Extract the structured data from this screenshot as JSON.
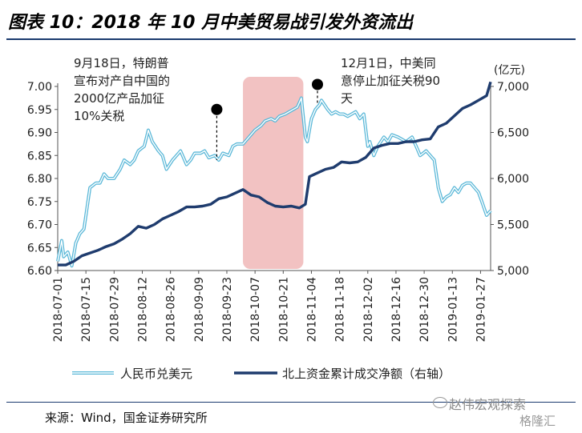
{
  "header": {
    "title": "图表 10：2018 年 10 月中美贸易战引发外资流出"
  },
  "footer": {
    "source": "来源：Wind，国金证券研究所",
    "watermark": "赵伟宏观探索",
    "watermark2": "格隆汇"
  },
  "colors": {
    "light_series": "#5bb8d8",
    "dark_series": "#1f3c6e",
    "shade": "#f2c2c2",
    "title_rule": "#1a3a6e"
  },
  "chart_data": {
    "type": "line",
    "x_tick_labels": [
      "2018-07-01",
      "2018-07-15",
      "2018-07-29",
      "2018-08-12",
      "2018-08-26",
      "2018-09-09",
      "2018-09-23",
      "2018-10-07",
      "2018-10-21",
      "2018-11-04",
      "2018-11-18",
      "2018-12-02",
      "2018-12-16",
      "2018-12-30",
      "2019-01-13",
      "2019-01-27"
    ],
    "xlim": [
      "2018-07-01",
      "2019-02-01"
    ],
    "y_left": {
      "ylim": [
        6.6,
        7.0
      ],
      "ticks": [
        "6.60",
        "6.65",
        "6.70",
        "6.75",
        "6.80",
        "6.85",
        "6.90",
        "6.95",
        "7.00"
      ]
    },
    "y_right": {
      "ylim": [
        5000,
        7000
      ],
      "ticks": [
        "5,000",
        "5,500",
        "6,000",
        "6,500",
        "7,000"
      ],
      "unit_label": "(亿元)"
    },
    "shaded_region": {
      "x_start": "2018-10-01",
      "x_end": "2018-10-31"
    },
    "annotations": [
      {
        "text": "9月18日，特朗普宣布对产自中国的2000亿产品加征10%关税",
        "x": "2018-09-18",
        "y": 6.95
      },
      {
        "text": "12月1日，中美同意停止加征关税90天",
        "x": "2018-11-07",
        "y": 6.98
      }
    ],
    "series": [
      {
        "name": "人民币兑美元",
        "axis": "left",
        "color": "#5bb8d8",
        "points": [
          [
            "2018-07-01",
            6.62
          ],
          [
            "2018-07-03",
            6.665
          ],
          [
            "2018-07-04",
            6.63
          ],
          [
            "2018-07-06",
            6.64
          ],
          [
            "2018-07-08",
            6.61
          ],
          [
            "2018-07-10",
            6.66
          ],
          [
            "2018-07-12",
            6.68
          ],
          [
            "2018-07-14",
            6.69
          ],
          [
            "2018-07-15",
            6.72
          ],
          [
            "2018-07-17",
            6.78
          ],
          [
            "2018-07-20",
            6.79
          ],
          [
            "2018-07-22",
            6.79
          ],
          [
            "2018-07-24",
            6.81
          ],
          [
            "2018-07-26",
            6.8
          ],
          [
            "2018-07-29",
            6.8
          ],
          [
            "2018-08-01",
            6.82
          ],
          [
            "2018-08-03",
            6.84
          ],
          [
            "2018-08-06",
            6.83
          ],
          [
            "2018-08-08",
            6.84
          ],
          [
            "2018-08-10",
            6.86
          ],
          [
            "2018-08-13",
            6.87
          ],
          [
            "2018-08-15",
            6.905
          ],
          [
            "2018-08-17",
            6.88
          ],
          [
            "2018-08-20",
            6.86
          ],
          [
            "2018-08-22",
            6.85
          ],
          [
            "2018-08-24",
            6.82
          ],
          [
            "2018-08-27",
            6.84
          ],
          [
            "2018-08-29",
            6.85
          ],
          [
            "2018-08-31",
            6.86
          ],
          [
            "2018-09-03",
            6.83
          ],
          [
            "2018-09-05",
            6.84
          ],
          [
            "2018-09-07",
            6.855
          ],
          [
            "2018-09-10",
            6.855
          ],
          [
            "2018-09-12",
            6.86
          ],
          [
            "2018-09-14",
            6.845
          ],
          [
            "2018-09-17",
            6.85
          ],
          [
            "2018-09-19",
            6.84
          ],
          [
            "2018-09-21",
            6.855
          ],
          [
            "2018-09-24",
            6.85
          ],
          [
            "2018-09-26",
            6.87
          ],
          [
            "2018-09-28",
            6.875
          ],
          [
            "2018-10-01",
            6.875
          ],
          [
            "2018-10-04",
            6.89
          ],
          [
            "2018-10-07",
            6.905
          ],
          [
            "2018-10-10",
            6.915
          ],
          [
            "2018-10-12",
            6.925
          ],
          [
            "2018-10-15",
            6.93
          ],
          [
            "2018-10-17",
            6.925
          ],
          [
            "2018-10-19",
            6.935
          ],
          [
            "2018-10-22",
            6.94
          ],
          [
            "2018-10-24",
            6.945
          ],
          [
            "2018-10-26",
            6.95
          ],
          [
            "2018-10-28",
            6.955
          ],
          [
            "2018-10-30",
            6.975
          ],
          [
            "2018-11-01",
            6.89
          ],
          [
            "2018-11-02",
            6.88
          ],
          [
            "2018-11-04",
            6.93
          ],
          [
            "2018-11-06",
            6.95
          ],
          [
            "2018-11-08",
            6.96
          ],
          [
            "2018-11-09",
            6.97
          ],
          [
            "2018-11-12",
            6.95
          ],
          [
            "2018-11-14",
            6.94
          ],
          [
            "2018-11-16",
            6.945
          ],
          [
            "2018-11-18",
            6.94
          ],
          [
            "2018-11-20",
            6.94
          ],
          [
            "2018-11-22",
            6.935
          ],
          [
            "2018-11-24",
            6.94
          ],
          [
            "2018-11-26",
            6.945
          ],
          [
            "2018-11-28",
            6.93
          ],
          [
            "2018-11-30",
            6.94
          ],
          [
            "2018-12-02",
            6.87
          ],
          [
            "2018-12-03",
            6.88
          ],
          [
            "2018-12-05",
            6.85
          ],
          [
            "2018-12-07",
            6.87
          ],
          [
            "2018-12-10",
            6.89
          ],
          [
            "2018-12-12",
            6.88
          ],
          [
            "2018-12-14",
            6.895
          ],
          [
            "2018-12-17",
            6.89
          ],
          [
            "2018-12-19",
            6.885
          ],
          [
            "2018-12-21",
            6.88
          ],
          [
            "2018-12-24",
            6.89
          ],
          [
            "2018-12-26",
            6.87
          ],
          [
            "2018-12-28",
            6.85
          ],
          [
            "2018-12-31",
            6.86
          ],
          [
            "2019-01-02",
            6.85
          ],
          [
            "2019-01-04",
            6.84
          ],
          [
            "2019-01-06",
            6.78
          ],
          [
            "2019-01-08",
            6.75
          ],
          [
            "2019-01-10",
            6.76
          ],
          [
            "2019-01-12",
            6.765
          ],
          [
            "2019-01-14",
            6.78
          ],
          [
            "2019-01-16",
            6.77
          ],
          [
            "2019-01-18",
            6.785
          ],
          [
            "2019-01-20",
            6.79
          ],
          [
            "2019-01-22",
            6.79
          ],
          [
            "2019-01-24",
            6.78
          ],
          [
            "2019-01-26",
            6.77
          ],
          [
            "2019-01-28",
            6.745
          ],
          [
            "2019-01-30",
            6.72
          ],
          [
            "2019-02-01",
            6.73
          ]
        ]
      },
      {
        "name": "北上资金累计成交净额（右轴）",
        "axis": "right",
        "color": "#1f3c6e",
        "points": [
          [
            "2018-07-01",
            5060
          ],
          [
            "2018-07-05",
            5060
          ],
          [
            "2018-07-09",
            5100
          ],
          [
            "2018-07-13",
            5160
          ],
          [
            "2018-07-17",
            5190
          ],
          [
            "2018-07-21",
            5220
          ],
          [
            "2018-07-25",
            5260
          ],
          [
            "2018-07-29",
            5290
          ],
          [
            "2018-08-02",
            5340
          ],
          [
            "2018-08-06",
            5400
          ],
          [
            "2018-08-10",
            5480
          ],
          [
            "2018-08-14",
            5460
          ],
          [
            "2018-08-18",
            5500
          ],
          [
            "2018-08-22",
            5560
          ],
          [
            "2018-08-26",
            5600
          ],
          [
            "2018-08-30",
            5640
          ],
          [
            "2018-09-03",
            5690
          ],
          [
            "2018-09-07",
            5690
          ],
          [
            "2018-09-11",
            5700
          ],
          [
            "2018-09-15",
            5720
          ],
          [
            "2018-09-19",
            5780
          ],
          [
            "2018-09-23",
            5800
          ],
          [
            "2018-09-27",
            5840
          ],
          [
            "2018-10-01",
            5880
          ],
          [
            "2018-10-05",
            5820
          ],
          [
            "2018-10-09",
            5800
          ],
          [
            "2018-10-13",
            5740
          ],
          [
            "2018-10-17",
            5700
          ],
          [
            "2018-10-21",
            5690
          ],
          [
            "2018-10-25",
            5700
          ],
          [
            "2018-10-29",
            5680
          ],
          [
            "2018-11-01",
            5720
          ],
          [
            "2018-11-03",
            6020
          ],
          [
            "2018-11-07",
            6060
          ],
          [
            "2018-11-11",
            6100
          ],
          [
            "2018-11-15",
            6120
          ],
          [
            "2018-11-19",
            6180
          ],
          [
            "2018-11-23",
            6170
          ],
          [
            "2018-11-27",
            6180
          ],
          [
            "2018-12-01",
            6230
          ],
          [
            "2018-12-05",
            6330
          ],
          [
            "2018-12-09",
            6360
          ],
          [
            "2018-12-13",
            6380
          ],
          [
            "2018-12-17",
            6380
          ],
          [
            "2018-12-21",
            6400
          ],
          [
            "2018-12-25",
            6400
          ],
          [
            "2018-12-29",
            6420
          ],
          [
            "2019-01-02",
            6430
          ],
          [
            "2019-01-06",
            6560
          ],
          [
            "2019-01-10",
            6600
          ],
          [
            "2019-01-14",
            6680
          ],
          [
            "2019-01-18",
            6760
          ],
          [
            "2019-01-22",
            6800
          ],
          [
            "2019-01-26",
            6850
          ],
          [
            "2019-01-30",
            6900
          ],
          [
            "2019-02-01",
            7050
          ]
        ]
      }
    ],
    "legend": {
      "placement": "bottom"
    }
  }
}
